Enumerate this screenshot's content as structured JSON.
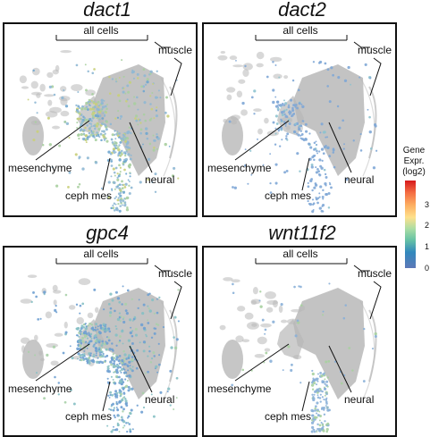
{
  "panels": [
    {
      "gene": "dact1",
      "mode": "high"
    },
    {
      "gene": "dact2",
      "mode": "low"
    },
    {
      "gene": "gpc4",
      "mode": "mid"
    },
    {
      "gene": "wnt11f2",
      "mode": "low2"
    }
  ],
  "labels": {
    "all_cells": "all cells",
    "muscle": "muscle",
    "mesenchyme": "mesenchyme",
    "neural": "neural",
    "ceph_mes": "ceph mes"
  },
  "legend": {
    "title_lines": [
      "Gene",
      "Expr.",
      "(log2)"
    ],
    "ticks": [
      "3",
      "2",
      "1",
      "0"
    ],
    "colors": [
      "#d7191c",
      "#f46d43",
      "#fdae61",
      "#fee08b",
      "#abdda4",
      "#66c2a5",
      "#3288bd",
      "#5e79b8"
    ]
  },
  "colors": {
    "gray": "#b8b8b8",
    "border": "#111111"
  }
}
